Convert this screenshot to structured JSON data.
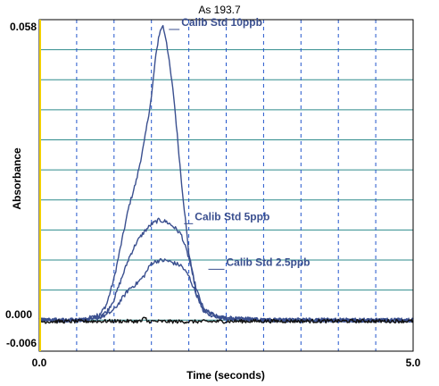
{
  "chart_data": {
    "type": "line",
    "title": "As 193.7",
    "xlabel": "Time (seconds)",
    "ylabel": "Absorbance",
    "xlim": [
      0.0,
      5.0
    ],
    "ylim": [
      -0.006,
      0.058
    ],
    "x_ticks": [
      "0.0",
      "5.0"
    ],
    "y_ticks": [
      "-0.006",
      "0.000",
      "0.058"
    ],
    "grid": true,
    "colors": {
      "plot_background": "#ffffff",
      "horizontal_grid": "#2e8b8b",
      "vertical_grid": "#2255cc",
      "calibration_series": "#3a4f8f",
      "blank_series": "#111111",
      "left_marker": "#f2d000",
      "annotation_text": "#3a4f8f"
    },
    "series": [
      {
        "name": "Calib Std 10ppb",
        "x": [
          0.0,
          0.5,
          0.8,
          0.9,
          1.0,
          1.1,
          1.2,
          1.3,
          1.4,
          1.5,
          1.55,
          1.6,
          1.65,
          1.7,
          1.8,
          1.9,
          2.0,
          2.1,
          2.2,
          2.4,
          2.6,
          3.0,
          4.0,
          5.0
        ],
        "y": [
          0.0,
          0.0,
          0.0008,
          0.003,
          0.008,
          0.015,
          0.022,
          0.027,
          0.034,
          0.043,
          0.05,
          0.055,
          0.057,
          0.054,
          0.043,
          0.027,
          0.013,
          0.005,
          0.0015,
          0.0005,
          0.0002,
          0.0,
          0.0,
          0.0
        ]
      },
      {
        "name": "Calib Std 5ppb",
        "x": [
          0.0,
          0.6,
          0.9,
          1.0,
          1.1,
          1.2,
          1.3,
          1.4,
          1.5,
          1.6,
          1.7,
          1.8,
          1.9,
          2.0,
          2.1,
          2.2,
          2.4,
          3.0,
          4.0,
          5.0
        ],
        "y": [
          0.0,
          0.0,
          0.0015,
          0.004,
          0.008,
          0.012,
          0.015,
          0.017,
          0.0185,
          0.0193,
          0.019,
          0.018,
          0.0165,
          0.012,
          0.006,
          0.002,
          0.0005,
          0.0,
          0.0,
          0.0
        ]
      },
      {
        "name": "Calib Std 2.5ppb",
        "x": [
          0.0,
          0.7,
          0.9,
          1.0,
          1.1,
          1.2,
          1.3,
          1.4,
          1.5,
          1.6,
          1.7,
          1.8,
          1.9,
          2.0,
          2.1,
          2.2,
          2.4,
          3.0,
          4.0,
          5.0
        ],
        "y": [
          0.0,
          0.0,
          0.001,
          0.002,
          0.004,
          0.006,
          0.007,
          0.0085,
          0.011,
          0.0115,
          0.0115,
          0.011,
          0.0105,
          0.0085,
          0.005,
          0.002,
          0.0005,
          0.0,
          0.0,
          0.0
        ]
      },
      {
        "name": "",
        "x": [
          0.0,
          1.0,
          2.0,
          3.0,
          4.0,
          5.0
        ],
        "y": [
          -0.0003,
          -0.0002,
          -0.0003,
          -0.0002,
          -0.0002,
          -0.0002
        ]
      }
    ],
    "annotations": [
      {
        "text": "Calib Std 10ppb",
        "x": 1.9,
        "y": 0.0568
      },
      {
        "text": "Calib Std 5ppb",
        "x": 2.08,
        "y": 0.0193
      },
      {
        "text": "Calib Std 2.5ppb",
        "x": 2.5,
        "y": 0.0105
      }
    ]
  }
}
